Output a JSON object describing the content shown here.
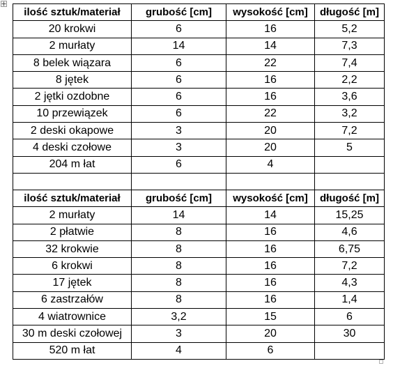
{
  "icons": {
    "table_move_handle": "move-cross-icon",
    "table_resize_handle": "resize-square-icon"
  },
  "table1": {
    "headers": [
      "ilość sztuk/materiał",
      "grubość [cm]",
      "wysokość [cm]",
      "długość [m]"
    ],
    "rows": [
      [
        "20 krokwi",
        "6",
        "16",
        "5,2"
      ],
      [
        "2 murłaty",
        "14",
        "14",
        "7,3"
      ],
      [
        "8 belek wiązara",
        "6",
        "22",
        "7,4"
      ],
      [
        "8 jętek",
        "6",
        "16",
        "2,2"
      ],
      [
        "2 jętki ozdobne",
        "6",
        "16",
        "3,6"
      ],
      [
        "10 przewiązek",
        "6",
        "22",
        "3,2"
      ],
      [
        "2 deski okapowe",
        "3",
        "20",
        "7,2"
      ],
      [
        "4 deski czołowe",
        "3",
        "20",
        "5"
      ],
      [
        "204 m łat",
        "6",
        "4",
        ""
      ]
    ]
  },
  "table2": {
    "headers": [
      "ilość sztuk/materiał",
      "grubość [cm]",
      "wysokość [cm]",
      "długość [m]"
    ],
    "rows": [
      [
        "2 murłaty",
        "14",
        "14",
        "15,25"
      ],
      [
        "2 płatwie",
        "8",
        "16",
        "4,6"
      ],
      [
        "32 krokwie",
        "8",
        "16",
        "6,75"
      ],
      [
        "6 krokwi",
        "8",
        "16",
        "7,2"
      ],
      [
        "17 jętek",
        "8",
        "16",
        "4,3"
      ],
      [
        "6 zastrzałów",
        "8",
        "16",
        "1,4"
      ],
      [
        "4 wiatrownice",
        "3,2",
        "15",
        "6"
      ],
      [
        "30 m deski czołowej",
        "3",
        "20",
        "30"
      ],
      [
        "520 m łat",
        "4",
        "6",
        ""
      ]
    ]
  }
}
